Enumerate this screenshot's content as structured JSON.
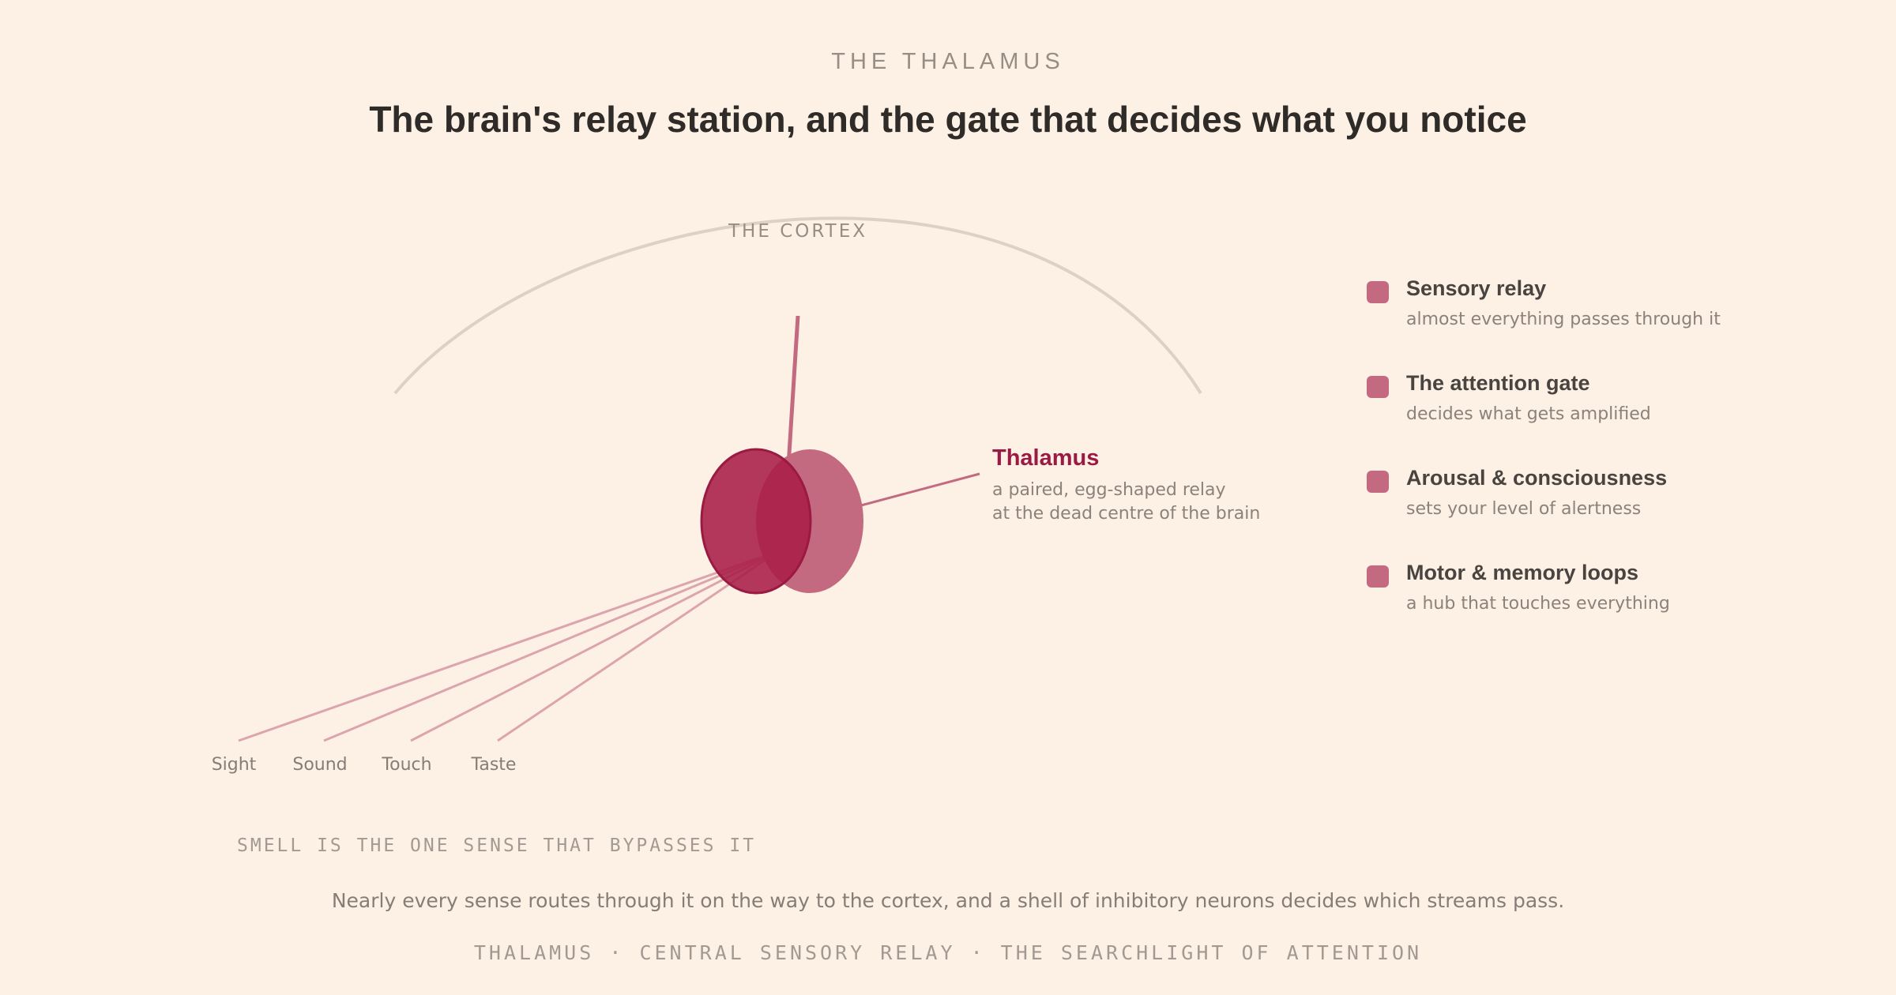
{
  "header": {
    "eyebrow": "THE THALAMUS",
    "title": "The brain's relay station, and the gate that decides what you notice"
  },
  "diagram": {
    "cortex_label": "THE CORTEX",
    "thalamus": {
      "title": "Thalamus",
      "desc_line1": "a paired, egg-shaped relay",
      "desc_line2": "at the dead centre of the brain"
    },
    "senses": [
      "Sight",
      "Sound",
      "Touch",
      "Taste"
    ],
    "smell_note": "SMELL IS THE ONE SENSE THAT BYPASSES IT"
  },
  "legend": {
    "items": [
      {
        "title": "Sensory relay",
        "subtitle": "almost everything passes through it"
      },
      {
        "title": "The attention gate",
        "subtitle": "decides what gets amplified"
      },
      {
        "title": "Arousal & consciousness",
        "subtitle": "sets your level of alertness"
      },
      {
        "title": "Motor & memory loops",
        "subtitle": "a hub that touches everything"
      }
    ]
  },
  "caption": "Nearly every sense routes through it on the way to the cortex, and a shell of inhibitory neurons decides which streams pass.",
  "footer": "THALAMUS · CENTRAL SENSORY RELAY · THE SEARCHLIGHT OF ATTENTION",
  "colors": {
    "background": "#fdf1e6",
    "accent": "#9a1a43",
    "lobe_light": "#c46a80",
    "pathway": "#dca5ad",
    "cortex_arc": "#ddd1c6"
  }
}
